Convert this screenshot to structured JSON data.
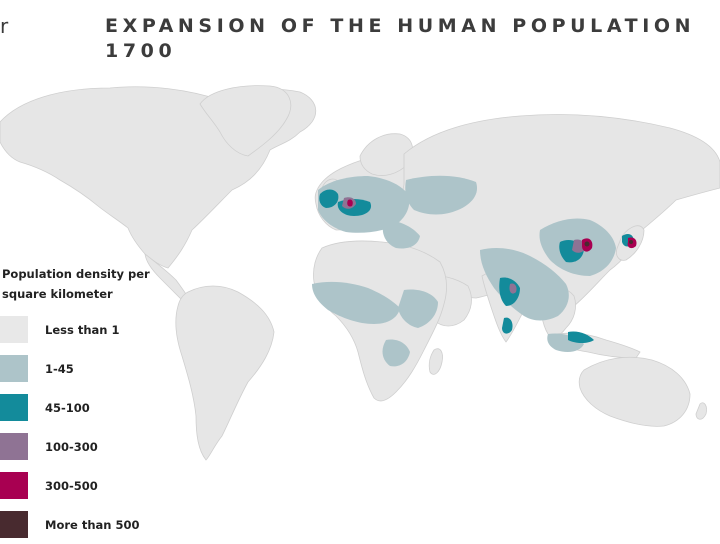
{
  "edge_glyph": "r",
  "title": {
    "line1": "EXPANSION OF THE HUMAN POPULATION",
    "line2": "1700"
  },
  "legend": {
    "title_line1": "Population density per",
    "title_line2": "square kilometer",
    "items": [
      {
        "label": "Less than 1",
        "color": "#e8e8e8"
      },
      {
        "label": "1-45",
        "color": "#adc4c9"
      },
      {
        "label": "45-100",
        "color": "#138b9b"
      },
      {
        "label": "100-300",
        "color": "#8f7394"
      },
      {
        "label": "300-500",
        "color": "#a80051"
      },
      {
        "label": "More than 500",
        "color": "#482a2f"
      }
    ]
  },
  "map": {
    "land_color": "#e6e6e6",
    "coast_color": "#cfcfcf"
  }
}
